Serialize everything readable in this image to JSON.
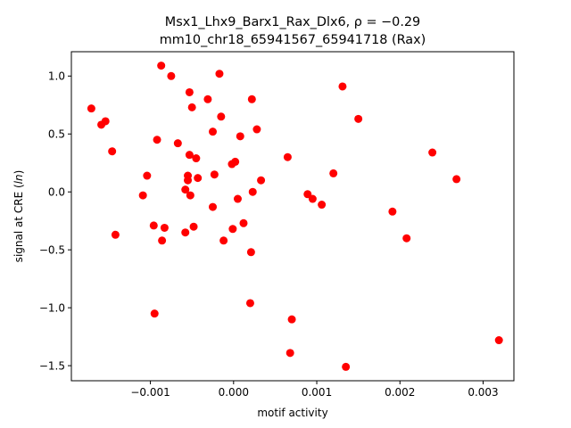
{
  "chart_data": {
    "type": "scatter",
    "title_line1": "Msx1_Lhx9_Barx1_Rax_Dlx6, ρ = −0.29",
    "title_line2": "mm10_chr18_65941567_65941718 (Rax)",
    "xlabel": "motif activity",
    "ylabel": "signal at CRE (ln)",
    "xlim": [
      -0.00195,
      0.00337
    ],
    "ylim": [
      -1.63,
      1.21
    ],
    "xticks": [
      -0.001,
      0.0,
      0.001,
      0.002,
      0.003
    ],
    "xtick_labels": [
      "−0.001",
      "0.000",
      "0.001",
      "0.002",
      "0.003"
    ],
    "yticks": [
      -1.5,
      -1.0,
      -0.5,
      0.0,
      0.5,
      1.0
    ],
    "ytick_labels": [
      "−1.5",
      "−1.0",
      "−0.5",
      "0.0",
      "0.5",
      "1.0"
    ],
    "grid": false,
    "marker_color": "#ff0000",
    "points": [
      {
        "x": -0.00171,
        "y": 0.72
      },
      {
        "x": -0.00159,
        "y": 0.58
      },
      {
        "x": -0.00154,
        "y": 0.61
      },
      {
        "x": -0.00146,
        "y": 0.35
      },
      {
        "x": -0.00142,
        "y": -0.37
      },
      {
        "x": -0.00109,
        "y": -0.03
      },
      {
        "x": -0.00104,
        "y": 0.14
      },
      {
        "x": -0.00096,
        "y": -0.29
      },
      {
        "x": -0.00095,
        "y": -1.05
      },
      {
        "x": -0.00092,
        "y": 0.45
      },
      {
        "x": -0.00087,
        "y": 1.09
      },
      {
        "x": -0.00086,
        "y": -0.42
      },
      {
        "x": -0.00083,
        "y": -0.31
      },
      {
        "x": -0.00075,
        "y": 1.0
      },
      {
        "x": -0.00067,
        "y": 0.42
      },
      {
        "x": -0.00058,
        "y": 0.02
      },
      {
        "x": -0.00058,
        "y": -0.35
      },
      {
        "x": -0.00055,
        "y": 0.1
      },
      {
        "x": -0.00055,
        "y": 0.14
      },
      {
        "x": -0.00053,
        "y": 0.86
      },
      {
        "x": -0.00053,
        "y": 0.32
      },
      {
        "x": -0.00052,
        "y": -0.03
      },
      {
        "x": -0.0005,
        "y": 0.73
      },
      {
        "x": -0.00048,
        "y": -0.3
      },
      {
        "x": -0.00045,
        "y": 0.29
      },
      {
        "x": -0.00043,
        "y": 0.12
      },
      {
        "x": -0.00031,
        "y": 0.8
      },
      {
        "x": -0.00025,
        "y": 0.52
      },
      {
        "x": -0.00025,
        "y": -0.13
      },
      {
        "x": -0.00023,
        "y": 0.15
      },
      {
        "x": -0.00017,
        "y": 1.02
      },
      {
        "x": -0.00015,
        "y": 0.65
      },
      {
        "x": -0.00012,
        "y": -0.42
      },
      {
        "x": -2e-05,
        "y": 0.24
      },
      {
        "x": -1e-05,
        "y": -0.32
      },
      {
        "x": 2e-05,
        "y": 0.26
      },
      {
        "x": 5e-05,
        "y": -0.06
      },
      {
        "x": 8e-05,
        "y": 0.48
      },
      {
        "x": 0.00012,
        "y": -0.27
      },
      {
        "x": 0.0002,
        "y": -0.96
      },
      {
        "x": 0.00021,
        "y": -0.52
      },
      {
        "x": 0.00022,
        "y": 0.8
      },
      {
        "x": 0.00023,
        "y": 0.0
      },
      {
        "x": 0.00028,
        "y": 0.54
      },
      {
        "x": 0.00033,
        "y": 0.1
      },
      {
        "x": 0.00065,
        "y": 0.3
      },
      {
        "x": 0.00068,
        "y": -1.39
      },
      {
        "x": 0.0007,
        "y": -1.1
      },
      {
        "x": 0.00089,
        "y": -0.02
      },
      {
        "x": 0.00095,
        "y": -0.06
      },
      {
        "x": 0.00106,
        "y": -0.11
      },
      {
        "x": 0.0012,
        "y": 0.16
      },
      {
        "x": 0.00131,
        "y": 0.91
      },
      {
        "x": 0.00135,
        "y": -1.51
      },
      {
        "x": 0.0015,
        "y": 0.63
      },
      {
        "x": 0.00191,
        "y": -0.17
      },
      {
        "x": 0.00208,
        "y": -0.4
      },
      {
        "x": 0.00239,
        "y": 0.34
      },
      {
        "x": 0.00268,
        "y": 0.11
      },
      {
        "x": 0.00319,
        "y": -1.28
      }
    ]
  }
}
